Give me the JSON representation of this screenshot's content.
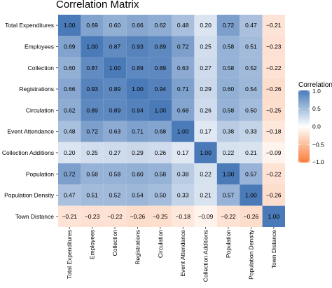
{
  "chart_data": {
    "type": "heatmap",
    "title": "Correlation Matrix",
    "variables": [
      "Total Expenditures",
      "Employees",
      "Collection",
      "Registrations",
      "Circulation",
      "Event Attendance",
      "Collection Additions",
      "Population",
      "Population Density",
      "Town Distance"
    ],
    "values": [
      [
        1.0,
        0.69,
        0.6,
        0.66,
        0.62,
        0.48,
        0.2,
        0.72,
        0.47,
        -0.21
      ],
      [
        0.69,
        1.0,
        0.87,
        0.93,
        0.89,
        0.72,
        0.25,
        0.58,
        0.51,
        -0.23
      ],
      [
        0.6,
        0.87,
        1.0,
        0.89,
        0.89,
        0.63,
        0.27,
        0.58,
        0.52,
        -0.22
      ],
      [
        0.66,
        0.93,
        0.89,
        1.0,
        0.94,
        0.71,
        0.29,
        0.6,
        0.54,
        -0.26
      ],
      [
        0.62,
        0.89,
        0.89,
        0.94,
        1.0,
        0.68,
        0.26,
        0.58,
        0.5,
        -0.25
      ],
      [
        0.48,
        0.72,
        0.63,
        0.71,
        0.68,
        1.0,
        0.17,
        0.38,
        0.33,
        -0.18
      ],
      [
        0.2,
        0.25,
        0.27,
        0.29,
        0.26,
        0.17,
        1.0,
        0.22,
        0.21,
        -0.09
      ],
      [
        0.72,
        0.58,
        0.58,
        0.6,
        0.58,
        0.38,
        0.22,
        1.0,
        0.57,
        -0.22
      ],
      [
        0.47,
        0.51,
        0.52,
        0.54,
        0.5,
        0.33,
        0.21,
        0.57,
        1.0,
        -0.26
      ],
      [
        -0.21,
        -0.23,
        -0.22,
        -0.26,
        -0.25,
        -0.18,
        -0.09,
        -0.22,
        -0.26,
        1.0
      ]
    ],
    "value_labels": [
      [
        "1.00",
        "0.69",
        "0.60",
        "0.66",
        "0.62",
        "0.48",
        "0.20",
        "0.72",
        "0.47",
        "−0.21"
      ],
      [
        "0.69",
        "1.00",
        "0.87",
        "0.93",
        "0.89",
        "0.72",
        "0.25",
        "0.58",
        "0.51",
        "−0.23"
      ],
      [
        "0.60",
        "0.87",
        "1.00",
        "0.89",
        "0.89",
        "0.63",
        "0.27",
        "0.58",
        "0.52",
        "−0.22"
      ],
      [
        "0.66",
        "0.93",
        "0.89",
        "1.00",
        "0.94",
        "0.71",
        "0.29",
        "0.60",
        "0.54",
        "−0.26"
      ],
      [
        "0.62",
        "0.89",
        "0.89",
        "0.94",
        "1.00",
        "0.68",
        "0.26",
        "0.58",
        "0.50",
        "−0.25"
      ],
      [
        "0.48",
        "0.72",
        "0.63",
        "0.71",
        "0.68",
        "1.00",
        "0.17",
        "0.38",
        "0.33",
        "−0.18"
      ],
      [
        "0.20",
        "0.25",
        "0.27",
        "0.29",
        "0.26",
        "0.17",
        "1.00",
        "0.22",
        "0.21",
        "−0.09"
      ],
      [
        "0.72",
        "0.58",
        "0.58",
        "0.60",
        "0.58",
        "0.38",
        "0.22",
        "1.00",
        "0.57",
        "−0.22"
      ],
      [
        "0.47",
        "0.51",
        "0.52",
        "0.54",
        "0.50",
        "0.33",
        "0.21",
        "0.57",
        "1.00",
        "−0.26"
      ],
      [
        "−0.21",
        "−0.23",
        "−0.22",
        "−0.26",
        "−0.25",
        "−0.18",
        "−0.09",
        "−0.22",
        "−0.26",
        "1.00"
      ]
    ],
    "legend": {
      "title": "Correlation",
      "ticks": [
        1.0,
        0.5,
        0.0,
        -0.5,
        -1.0
      ],
      "tick_labels": [
        "1.0",
        "0.5",
        "0.0",
        "−0.5",
        "−1.0"
      ],
      "placement": "right"
    },
    "color_scale": {
      "range": [
        -1,
        1
      ],
      "low": "#f97d3b",
      "mid": "#ffffff",
      "high": "#4a7ab8"
    },
    "grid": false
  }
}
